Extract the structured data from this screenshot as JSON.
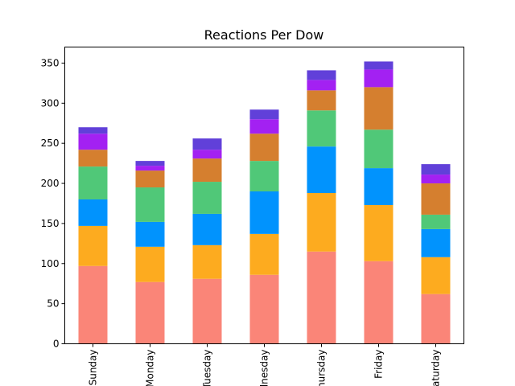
{
  "chart_data": {
    "type": "bar",
    "stacked": true,
    "title": "Reactions Per Dow",
    "xlabel": "",
    "ylabel": "",
    "categories": [
      "Sunday",
      "Monday",
      "Tuesday",
      "Wednesday",
      "Thursday",
      "Friday",
      "Saturday"
    ],
    "ylim": [
      0,
      370
    ],
    "yticks": [
      0,
      50,
      100,
      150,
      200,
      250,
      300,
      350
    ],
    "legend": "none",
    "grid": false,
    "series": [
      {
        "color": "#fa8578",
        "values": [
          97,
          77,
          81,
          86,
          115,
          103,
          62
        ]
      },
      {
        "color": "#fdab1f",
        "values": [
          50,
          44,
          42,
          51,
          73,
          70,
          46
        ]
      },
      {
        "color": "#0193fd",
        "values": [
          33,
          31,
          39,
          53,
          58,
          46,
          35
        ]
      },
      {
        "color": "#50c878",
        "values": [
          41,
          43,
          40,
          38,
          45,
          48,
          18
        ]
      },
      {
        "color": "#d57f2f",
        "values": [
          21,
          21,
          29,
          34,
          25,
          53,
          39
        ]
      },
      {
        "color": "#a321f2",
        "values": [
          20,
          6,
          11,
          18,
          13,
          22,
          11
        ]
      },
      {
        "color": "#6140d9",
        "values": [
          8,
          6,
          14,
          12,
          12,
          10,
          13
        ]
      }
    ]
  }
}
